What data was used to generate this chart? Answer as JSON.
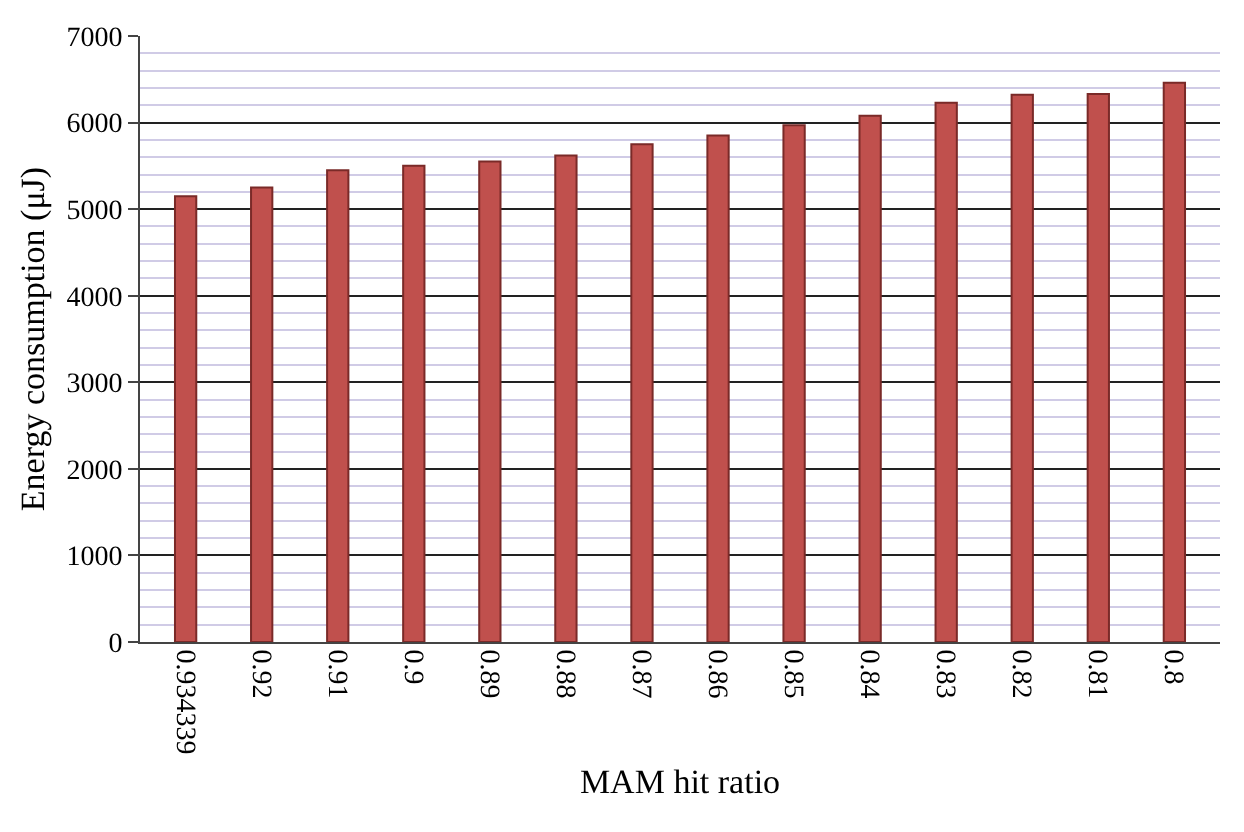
{
  "chart_data": {
    "type": "bar",
    "xlabel": "MAM hit ratio",
    "ylabel": "Energy consumption (μJ)",
    "categories": [
      "0.934339",
      "0.92",
      "0.91",
      "0.9",
      "0.89",
      "0.88",
      "0.87",
      "0.86",
      "0.85",
      "0.84",
      "0.83",
      "0.82",
      "0.81",
      "0.8"
    ],
    "values": [
      5150,
      5250,
      5450,
      5500,
      5550,
      5620,
      5750,
      5850,
      5970,
      6080,
      6230,
      6320,
      6330,
      6460
    ],
    "color": "#c0504d",
    "ylim": [
      0,
      7000
    ],
    "yticks": [
      0,
      1000,
      2000,
      3000,
      4000,
      5000,
      6000,
      7000
    ],
    "grid": "y"
  }
}
